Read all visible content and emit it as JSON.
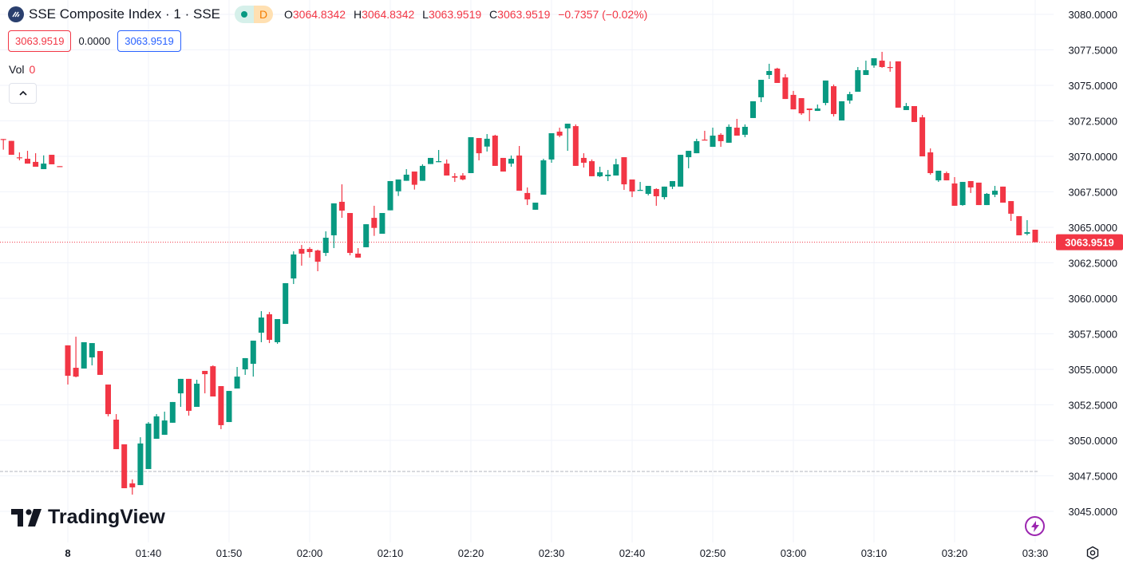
{
  "header": {
    "symbol_title": "SSE Composite Index · 1 · SSE",
    "market_status": "D",
    "ohlc": {
      "o_label": "O",
      "o": "3064.8342",
      "h_label": "H",
      "h": "3064.8342",
      "l_label": "L",
      "l": "3063.9519",
      "c_label": "C",
      "c": "3063.9519",
      "change": "−0.7357 (−0.02%)"
    },
    "sell_price": "3063.9519",
    "spread": "0.0000",
    "buy_price": "3063.9519",
    "volume_label": "Vol",
    "volume_value": "0"
  },
  "brand": "TradingView",
  "colors": {
    "up": "#089981",
    "down": "#f23645",
    "grid": "#f0f3fa",
    "accent": "#2962ff"
  },
  "chart_data": {
    "type": "candlestick",
    "title": "SSE Composite Index · 1 · SSE",
    "interval_minutes": 1,
    "ylim": [
      3043.5,
      3081
    ],
    "y_ticks": [
      "3080.0000",
      "3077.5000",
      "3075.0000",
      "3072.5000",
      "3070.0000",
      "3067.5000",
      "3065.0000",
      "3062.5000",
      "3060.0000",
      "3057.5000",
      "3055.0000",
      "3052.5000",
      "3050.0000",
      "3047.5000",
      "3045.0000"
    ],
    "x_ticks": [
      "8",
      "01:40",
      "01:50",
      "02:00",
      "02:10",
      "02:20",
      "02:30",
      "02:40",
      "02:50",
      "03:00",
      "03:10",
      "03:20",
      "03:30"
    ],
    "last_price": 3063.9519,
    "last_price_label": "3063.9519",
    "reference_line": 3047.81,
    "prev_session_ohlc": [
      [
        3071.22,
        3071.22,
        3070.47,
        3071.16
      ],
      [
        3071.09,
        3071.09,
        3070.11,
        3070.11
      ],
      [
        3069.93,
        3070.28,
        3069.72,
        3069.92
      ],
      [
        3069.83,
        3070.39,
        3069.49,
        3069.49
      ],
      [
        3069.61,
        3070.22,
        3069.27,
        3069.27
      ],
      [
        3069.1,
        3070.07,
        3069.1,
        3069.49
      ],
      [
        3070.11,
        3070.11,
        3069.44,
        3069.44
      ],
      [
        3069.31,
        3069.31,
        3069.3,
        3069.3
      ]
    ],
    "session_start": "01:30",
    "ohlc": [
      [
        3056.69,
        3056.69,
        3053.93,
        3054.55
      ],
      [
        3055.11,
        3057.3,
        3054.44,
        3054.49
      ],
      [
        3055.06,
        3056.91,
        3055.06,
        3056.91
      ],
      [
        3055.84,
        3056.85,
        3055.28,
        3056.85
      ],
      [
        3056.29,
        3056.29,
        3054.61,
        3054.61
      ],
      [
        3053.93,
        3053.93,
        3051.69,
        3051.85
      ],
      [
        3051.46,
        3051.85,
        3049.38,
        3049.38
      ],
      [
        3049.72,
        3049.72,
        3046.63,
        3046.63
      ],
      [
        3046.97,
        3047.25,
        3046.18,
        3046.69
      ],
      [
        3046.85,
        3050.22,
        3046.85,
        3049.78
      ],
      [
        3047.98,
        3051.29,
        3047.98,
        3051.18
      ],
      [
        3050.11,
        3051.85,
        3050.11,
        3051.69
      ],
      [
        3050.39,
        3052.02,
        3050.39,
        3051.4
      ],
      [
        3051.24,
        3052.7,
        3051.24,
        3052.7
      ],
      [
        3053.31,
        3054.33,
        3052.36,
        3054.33
      ],
      [
        3054.33,
        3054.33,
        3051.74,
        3052.08
      ],
      [
        3052.36,
        3054.27,
        3052.36,
        3053.99
      ],
      [
        3054.89,
        3054.89,
        3053.31,
        3054.66
      ],
      [
        3055.22,
        3055.28,
        3053.09,
        3053.09
      ],
      [
        3053.82,
        3053.82,
        3050.79,
        3051.07
      ],
      [
        3051.29,
        3053.48,
        3051.29,
        3053.48
      ],
      [
        3053.65,
        3055.17,
        3053.65,
        3054.49
      ],
      [
        3055.0,
        3055.79,
        3054.61,
        3055.79
      ],
      [
        3055.39,
        3057.02,
        3054.49,
        3057.02
      ],
      [
        3057.58,
        3059.1,
        3056.91,
        3058.65
      ],
      [
        3058.88,
        3059.04,
        3056.85,
        3057.08
      ],
      [
        3056.91,
        3058.54,
        3056.8,
        3058.54
      ],
      [
        3058.2,
        3061.07,
        3058.2,
        3061.07
      ],
      [
        3061.4,
        3063.31,
        3061.01,
        3063.09
      ],
      [
        3063.48,
        3063.76,
        3062.3,
        3063.15
      ],
      [
        3063.48,
        3063.6,
        3062.87,
        3063.26
      ],
      [
        3063.37,
        3063.43,
        3061.91,
        3062.58
      ],
      [
        3063.2,
        3064.72,
        3062.98,
        3064.27
      ],
      [
        3064.44,
        3066.69,
        3063.54,
        3066.69
      ],
      [
        3066.8,
        3068.03,
        3065.67,
        3066.18
      ],
      [
        3066.01,
        3066.01,
        3063.03,
        3063.2
      ],
      [
        3063.15,
        3063.54,
        3062.87,
        3062.87
      ],
      [
        3063.6,
        3065.22,
        3063.6,
        3065.22
      ],
      [
        3065.67,
        3066.52,
        3064.4,
        3064.96
      ],
      [
        3064.55,
        3066.01,
        3064.55,
        3066.01
      ],
      [
        3066.2,
        3068.26,
        3066.2,
        3068.26
      ],
      [
        3067.54,
        3068.37,
        3067.21,
        3068.37
      ],
      [
        3068.28,
        3069.1,
        3068.28,
        3068.71
      ],
      [
        3068.93,
        3068.93,
        3067.66,
        3068.0
      ],
      [
        3068.28,
        3069.44,
        3068.28,
        3069.33
      ],
      [
        3069.46,
        3069.89,
        3069.46,
        3069.89
      ],
      [
        3069.59,
        3070.45,
        3069.59,
        3069.66
      ],
      [
        3069.49,
        3069.78,
        3068.65,
        3068.65
      ],
      [
        3068.6,
        3068.82,
        3068.2,
        3068.5
      ],
      [
        3068.65,
        3068.82,
        3068.31,
        3068.37
      ],
      [
        3068.82,
        3071.35,
        3068.82,
        3071.35
      ],
      [
        3071.29,
        3071.29,
        3069.72,
        3070.22
      ],
      [
        3070.69,
        3071.57,
        3070.34,
        3071.24
      ],
      [
        3071.46,
        3071.52,
        3069.33,
        3069.33
      ],
      [
        3069.89,
        3069.89,
        3068.93,
        3068.93
      ],
      [
        3069.49,
        3070.06,
        3069.27,
        3069.83
      ],
      [
        3070.06,
        3070.73,
        3067.58,
        3067.58
      ],
      [
        3067.42,
        3067.81,
        3066.57,
        3066.97
      ],
      [
        3066.24,
        3066.74,
        3066.24,
        3066.74
      ],
      [
        3067.3,
        3069.83,
        3067.3,
        3069.72
      ],
      [
        3069.78,
        3071.63,
        3069.55,
        3071.63
      ],
      [
        3071.74,
        3072.02,
        3071.35,
        3071.46
      ],
      [
        3071.97,
        3072.3,
        3070.39,
        3072.3
      ],
      [
        3072.13,
        3072.25,
        3069.33,
        3069.33
      ],
      [
        3069.89,
        3070.22,
        3069.21,
        3069.55
      ],
      [
        3069.66,
        3069.78,
        3068.6,
        3068.6
      ],
      [
        3068.6,
        3069.27,
        3068.54,
        3068.88
      ],
      [
        3068.6,
        3069.04,
        3068.26,
        3068.71
      ],
      [
        3068.65,
        3069.83,
        3068.65,
        3069.44
      ],
      [
        3069.94,
        3069.94,
        3067.64,
        3068.03
      ],
      [
        3068.37,
        3068.37,
        3067.13,
        3067.53
      ],
      [
        3067.58,
        3068.2,
        3067.58,
        3067.64
      ],
      [
        3067.36,
        3067.92,
        3067.25,
        3067.92
      ],
      [
        3067.7,
        3067.75,
        3066.52,
        3067.19
      ],
      [
        3067.13,
        3067.87,
        3066.97,
        3067.87
      ],
      [
        3067.87,
        3068.26,
        3067.7,
        3068.26
      ],
      [
        3067.87,
        3070.11,
        3067.87,
        3070.11
      ],
      [
        3069.94,
        3070.39,
        3069.16,
        3070.39
      ],
      [
        3070.22,
        3071.24,
        3070.22,
        3071.07
      ],
      [
        3071.18,
        3071.8,
        3071.12,
        3071.12
      ],
      [
        3070.67,
        3072.02,
        3070.67,
        3071.46
      ],
      [
        3071.52,
        3071.63,
        3070.67,
        3071.07
      ],
      [
        3070.96,
        3072.25,
        3070.96,
        3072.08
      ],
      [
        3072.02,
        3072.64,
        3071.46,
        3071.46
      ],
      [
        3071.52,
        3072.25,
        3071.35,
        3072.08
      ],
      [
        3072.7,
        3073.88,
        3072.7,
        3073.88
      ],
      [
        3074.16,
        3075.39,
        3073.82,
        3075.39
      ],
      [
        3075.73,
        3076.52,
        3075.45,
        3076.01
      ],
      [
        3076.18,
        3076.24,
        3075.17,
        3075.17
      ],
      [
        3075.56,
        3075.79,
        3074.04,
        3074.04
      ],
      [
        3074.33,
        3074.61,
        3073.31,
        3073.31
      ],
      [
        3074.1,
        3074.1,
        3072.92,
        3073.03
      ],
      [
        3073.37,
        3073.37,
        3072.47,
        3073.26
      ],
      [
        3073.2,
        3073.65,
        3073.2,
        3073.37
      ],
      [
        3073.76,
        3075.34,
        3073.6,
        3075.34
      ],
      [
        3074.94,
        3075.06,
        3072.81,
        3072.98
      ],
      [
        3072.53,
        3073.88,
        3072.53,
        3073.88
      ],
      [
        3073.93,
        3074.55,
        3073.71,
        3074.38
      ],
      [
        3074.55,
        3076.29,
        3074.55,
        3076.07
      ],
      [
        3075.73,
        3076.74,
        3075.73,
        3076.07
      ],
      [
        3076.4,
        3076.91,
        3076.24,
        3076.91
      ],
      [
        3076.74,
        3077.36,
        3076.24,
        3076.29
      ],
      [
        3076.29,
        3076.69,
        3075.96,
        3076.24
      ],
      [
        3076.69,
        3076.69,
        3073.43,
        3073.43
      ],
      [
        3073.26,
        3073.76,
        3073.26,
        3073.54
      ],
      [
        3073.54,
        3073.54,
        3072.42,
        3072.42
      ],
      [
        3072.75,
        3072.92,
        3070.0,
        3070.0
      ],
      [
        3070.28,
        3070.56,
        3068.71,
        3068.82
      ],
      [
        3068.31,
        3068.99,
        3068.2,
        3068.99
      ],
      [
        3068.82,
        3068.93,
        3068.31,
        3068.31
      ],
      [
        3068.09,
        3068.54,
        3066.52,
        3066.52
      ],
      [
        3066.57,
        3068.2,
        3066.52,
        3068.2
      ],
      [
        3068.26,
        3068.26,
        3067.42,
        3067.81
      ],
      [
        3068.15,
        3068.15,
        3066.57,
        3066.57
      ],
      [
        3066.57,
        3067.42,
        3066.57,
        3067.36
      ],
      [
        3067.3,
        3067.92,
        3067.13,
        3067.58
      ],
      [
        3067.87,
        3067.87,
        3066.74,
        3066.74
      ],
      [
        3066.85,
        3066.85,
        3065.45,
        3065.96
      ],
      [
        3065.79,
        3065.79,
        3064.44,
        3064.44
      ],
      [
        3064.55,
        3065.51,
        3064.44,
        3064.66
      ],
      [
        3064.8342,
        3064.8342,
        3063.9519,
        3063.9519
      ]
    ]
  }
}
